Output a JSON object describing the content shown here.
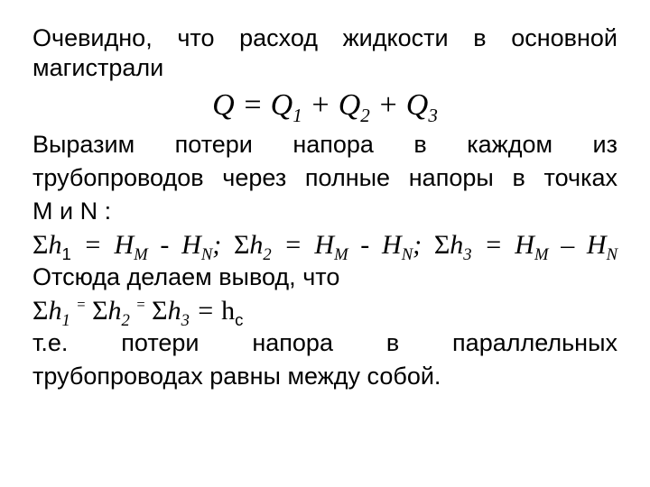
{
  "p1": "Очевидно, что расход жидкости в основной магистрали",
  "eq_center": {
    "Q": "Q",
    "eq": " = ",
    "Q1": "Q",
    "s1": "1",
    "plus1": " + ",
    "Q2": "Q",
    "s2": "2",
    "plus2": " + ",
    "Q3": "Q",
    "s3": "3"
  },
  "p2a": "Выразим потери напора в каждом из",
  "p2b": "трубопроводов через полные напоры в точках",
  "p2c": "М и N :",
  "eq_h": {
    "S": "Σ",
    "h": "h",
    "i1": "1",
    "eq": " = ",
    "H": "H",
    "M": "M",
    "minus": " - ",
    "N": "N",
    "semi": "; ",
    "i2": "2",
    "i3": "3",
    "dash": " – "
  },
  "p3": "Отсюда делаем вывод, что",
  "eq_hc": {
    "S": "Σ",
    "h": "h",
    "i1": "1",
    "sp1": " ",
    "supeq": "=",
    "sp2": " ",
    "i2": "2",
    "i3": "3",
    "eq": " = ",
    "hc_h": "h",
    "hc_c": "с"
  },
  "p4a": "т.е. потери напора в параллельных",
  "p4b": "трубопроводах равны между собой."
}
